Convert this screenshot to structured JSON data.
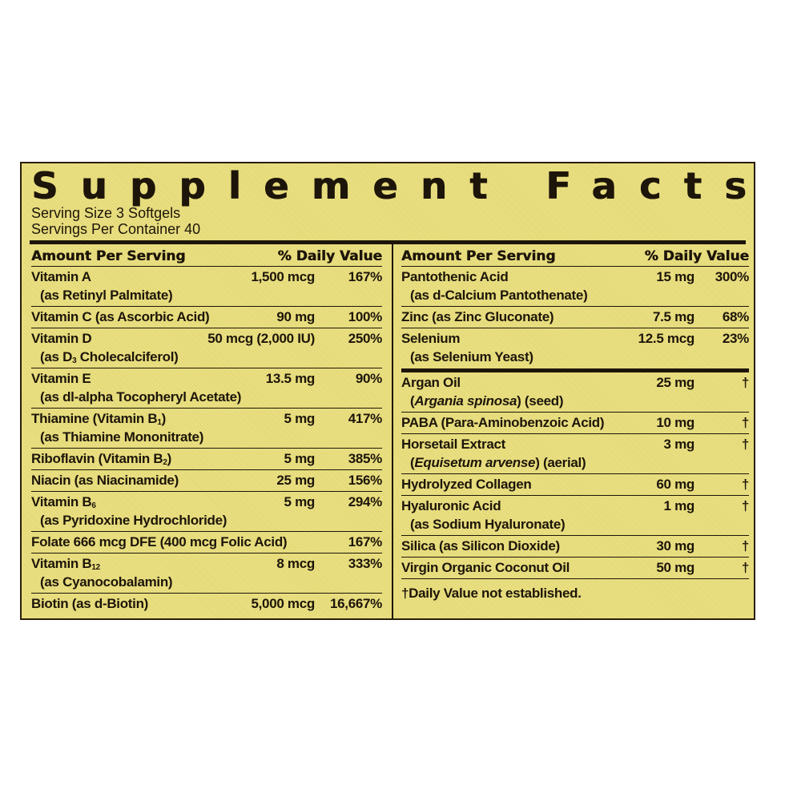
{
  "title": "Supplement Facts",
  "serving_size": "Serving Size 3 Softgels",
  "servings_per_container": "Servings Per Container 40",
  "colors": {
    "background": "#ebe07c",
    "text": "#1d1509"
  },
  "left": {
    "header_amount": "Amount Per Serving",
    "header_dv": "% Daily Value",
    "rows": [
      {
        "name": "Vitamin A",
        "line2": "(as Retinyl Palmitate)",
        "amount": "1,500 mcg",
        "dv": "167%"
      },
      {
        "name": "Vitamin C (as Ascorbic Acid)",
        "amount": "90 mg",
        "dv": "100%"
      },
      {
        "name": "Vitamin D",
        "line2": "(as D",
        "line2_sub": "3",
        "line2_post": " Cholecalciferol)",
        "amount": "50 mcg (2,000 IU)",
        "dv": "250%"
      },
      {
        "name": "Vitamin E",
        "line2": "(as dl-alpha Tocopheryl Acetate)",
        "amount": "13.5 mg",
        "dv": "90%"
      },
      {
        "name": "Thiamine (Vitamin B",
        "name_sub": "1",
        "name_post": ")",
        "line2": "(as Thiamine Mononitrate)",
        "amount": "5 mg",
        "dv": "417%"
      },
      {
        "name": "Riboflavin (Vitamin B",
        "name_sub": "2",
        "name_post": ")",
        "amount": "5 mg",
        "dv": "385%"
      },
      {
        "name": "Niacin (as Niacinamide)",
        "amount": "25 mg",
        "dv": "156%"
      },
      {
        "name": "Vitamin B",
        "name_sub": "6",
        "line2": "(as Pyridoxine Hydrochloride)",
        "amount": "5 mg",
        "dv": "294%"
      },
      {
        "name": "Folate  666 mcg DFE (400 mcg Folic Acid)",
        "amount": "",
        "dv": "167%"
      },
      {
        "name": "Vitamin B",
        "name_sub": "12",
        "line2": "(as Cyanocobalamin)",
        "amount": "8 mcg",
        "dv": "333%"
      },
      {
        "name": "Biotin (as d-Biotin)",
        "amount": "5,000 mcg",
        "dv": "16,667%"
      }
    ]
  },
  "right": {
    "header_amount": "Amount Per Serving",
    "header_dv": "% Daily Value",
    "rows": [
      {
        "name": "Pantothenic Acid",
        "line2": "(as d-Calcium Pantothenate)",
        "amount": "15 mg",
        "dv": "300%"
      },
      {
        "name": "Zinc (as Zinc Gluconate)",
        "amount": "7.5 mg",
        "dv": "68%"
      },
      {
        "name": "Selenium",
        "line2": "(as Selenium Yeast)",
        "amount": "12.5 mcg",
        "dv": "23%"
      },
      {
        "name": "Argan Oil",
        "line2_italic": "Argania spinosa",
        "line2_pre": "(",
        "line2_post": ") (seed)",
        "amount": "25 mg",
        "dv": "†"
      },
      {
        "name": "PABA (Para-Aminobenzoic Acid)",
        "amount": "10 mg",
        "dv": "†"
      },
      {
        "name": "Horsetail Extract",
        "line2_italic": "Equisetum arvense",
        "line2_pre": "(",
        "line2_post": ") (aerial)",
        "amount": "3 mg",
        "dv": "†"
      },
      {
        "name": "Hydrolyzed Collagen",
        "amount": "60 mg",
        "dv": "†"
      },
      {
        "name": "Hyaluronic Acid",
        "line2": "(as Sodium Hyaluronate)",
        "amount": "1 mg",
        "dv": "†"
      },
      {
        "name": "Silica (as Silicon Dioxide)",
        "amount": "30 mg",
        "dv": "†"
      },
      {
        "name": "Virgin Organic Coconut Oil",
        "amount": "50 mg",
        "dv": "†"
      }
    ],
    "footnote": "†Daily Value not established."
  }
}
